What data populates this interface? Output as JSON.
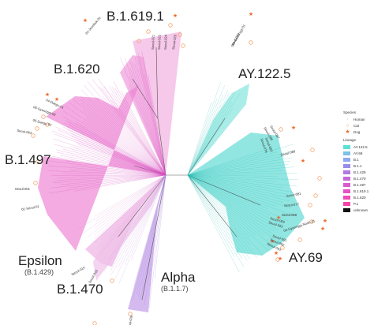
{
  "clades": [
    {
      "name": "B.1.619.1",
      "sub": ""
    },
    {
      "name": "AY.122.5",
      "sub": ""
    },
    {
      "name": "B.1.620",
      "sub": ""
    },
    {
      "name": "B.1.497",
      "sub": ""
    },
    {
      "name": "Epsilon",
      "sub": "(B.1.429)"
    },
    {
      "name": "B.1.470",
      "sub": ""
    },
    {
      "name": "Alpha",
      "sub": "(B.1.1.7)"
    },
    {
      "name": "AY.69",
      "sub": ""
    }
  ],
  "legend": {
    "species_title": "Species",
    "species": [
      {
        "label": "Human",
        "marker": "dot"
      },
      {
        "label": "Cat",
        "marker": "ring"
      },
      {
        "label": "Dog",
        "marker": "star"
      }
    ],
    "lineage_title": "Lineage",
    "lineages": [
      {
        "label": "AY.122.5",
        "color": "#5ee0d8"
      },
      {
        "label": "AY.69",
        "color": "#7cc3e6"
      },
      {
        "label": "B.1",
        "color": "#8fa9ee"
      },
      {
        "label": "B.1.1",
        "color": "#9a8ee8"
      },
      {
        "label": "B.1.429",
        "color": "#b07ae0"
      },
      {
        "label": "B.1.470",
        "color": "#c46ad8"
      },
      {
        "label": "B.1.497",
        "color": "#d85ed0"
      },
      {
        "label": "B.1.619.1",
        "color": "#e851c6"
      },
      {
        "label": "B.1.620",
        "color": "#f04ab8"
      },
      {
        "label": "P.1",
        "color": "#f545a8"
      },
      {
        "label": "unknown",
        "color": "#111111"
      }
    ]
  },
  "tips": [
    {
      "text": "01-Jeonbuk-01"
    },
    {
      "text": "Seoul-021"
    },
    {
      "text": "Seoul-022"
    },
    {
      "text": "Seoul-024"
    },
    {
      "text": "Seoul-020"
    },
    {
      "text": "Seoul-099"
    },
    {
      "text": "03-Gyeonggi-01"
    },
    {
      "text": "04-Daegu-01"
    },
    {
      "text": "06-Gyeonggi-02"
    },
    {
      "text": "05-Daegu-02"
    },
    {
      "text": "Seoul-063"
    },
    {
      "text": "Seoul-076"
    },
    {
      "text": "Seoul-083"
    },
    {
      "text": "Seoul-001"
    },
    {
      "text": "Seoul-088"
    },
    {
      "text": "Seoul-087"
    },
    {
      "text": "Seoul-089"
    },
    {
      "text": "Seoul-081"
    },
    {
      "text": "Seoul-077"
    },
    {
      "text": "Seoul-059"
    },
    {
      "text": "Seoul-060"
    },
    {
      "text": "Seoul-061"
    },
    {
      "text": "02-Gyeonggi-North-01"
    },
    {
      "text": "Seoul-091"
    },
    {
      "text": "Seoul-092"
    },
    {
      "text": "Seoul-093"
    },
    {
      "text": "01-Seoul-01"
    },
    {
      "text": "Seoul-014"
    },
    {
      "text": "Seoul-016"
    },
    {
      "text": "Seoul-036"
    }
  ]
}
